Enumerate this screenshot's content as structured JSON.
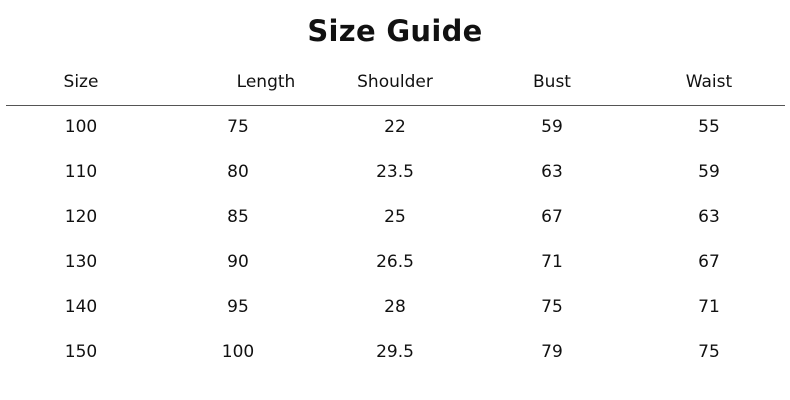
{
  "title": "Size Guide",
  "table": {
    "headers": [
      "Size",
      "Length",
      "Shoulder",
      "Bust",
      "Waist"
    ],
    "rows": [
      [
        "100",
        "75",
        "22",
        "59",
        "55"
      ],
      [
        "110",
        "80",
        "23.5",
        "63",
        "59"
      ],
      [
        "120",
        "85",
        "25",
        "67",
        "63"
      ],
      [
        "130",
        "90",
        "26.5",
        "71",
        "67"
      ],
      [
        "140",
        "95",
        "28",
        "75",
        "71"
      ],
      [
        "150",
        "100",
        "29.5",
        "79",
        "75"
      ]
    ]
  }
}
